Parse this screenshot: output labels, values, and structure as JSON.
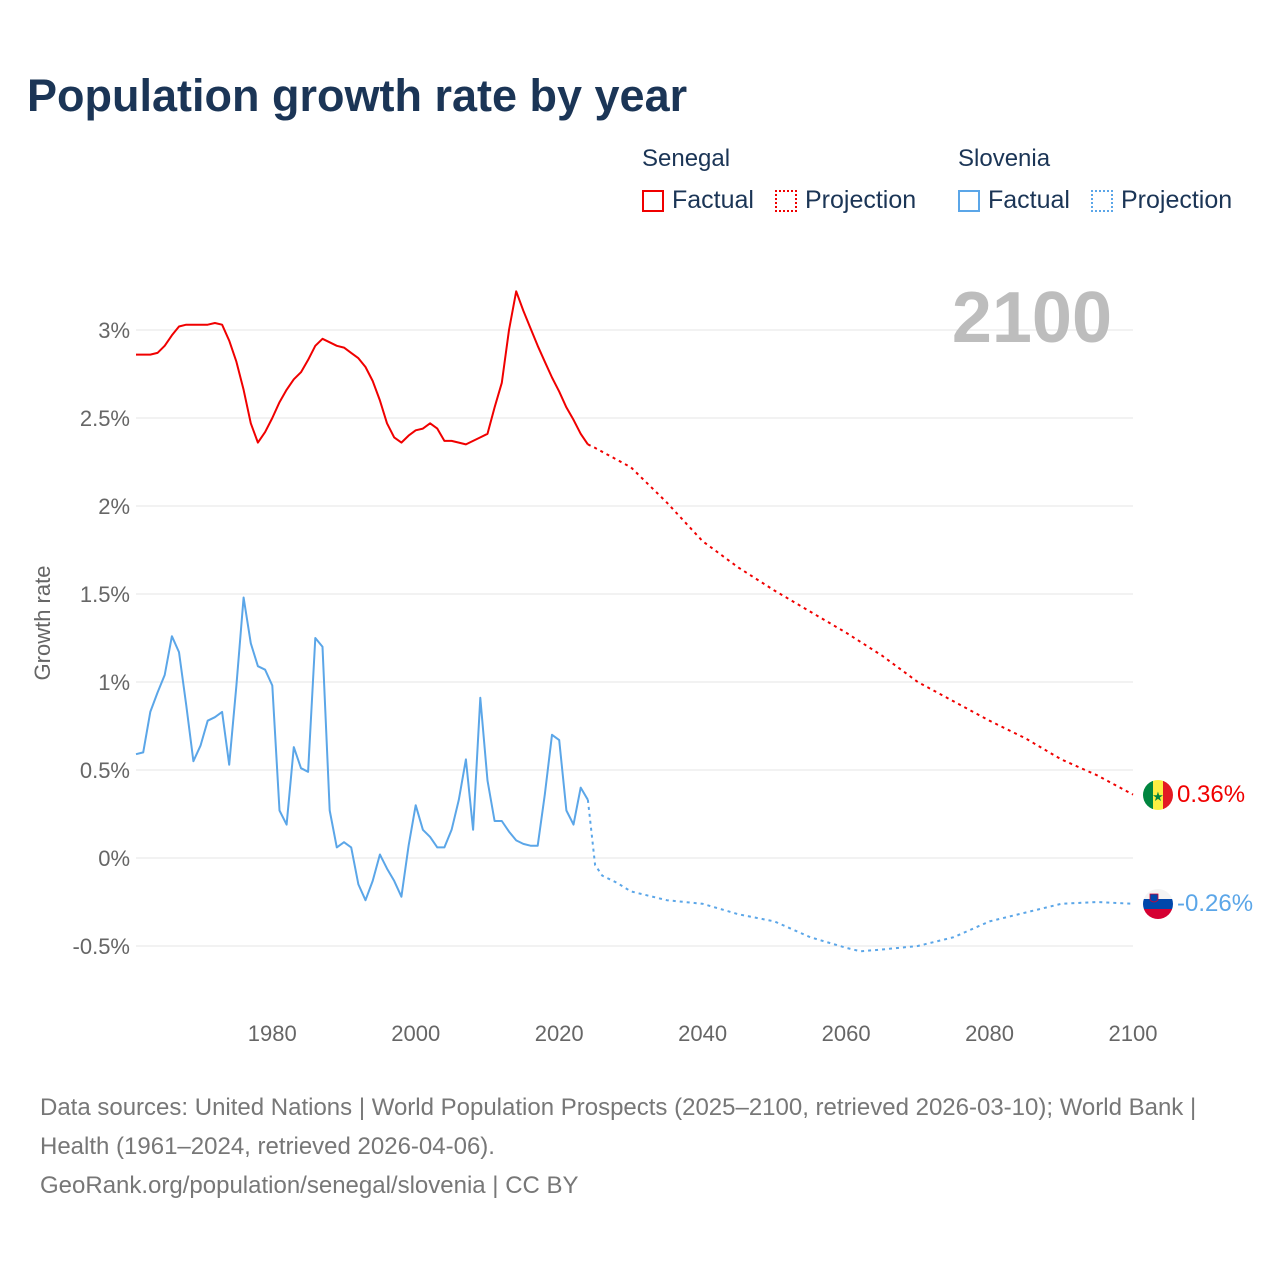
{
  "title": "Population growth rate by year",
  "legend": {
    "groups": [
      {
        "name": "Senegal",
        "items": [
          "Factual",
          "Projection"
        ],
        "color": "#f00000"
      },
      {
        "name": "Slovenia",
        "items": [
          "Factual",
          "Projection"
        ],
        "color": "#5ba6e8"
      }
    ]
  },
  "year_watermark": "2100",
  "chart_data": {
    "type": "line",
    "title": "Population growth rate by year",
    "xlabel": "",
    "ylabel": "Growth rate",
    "xlim": [
      1961,
      2100
    ],
    "ylim": [
      -0.7,
      3.4
    ],
    "xticks": [
      1980,
      2000,
      2020,
      2040,
      2060,
      2080,
      2100
    ],
    "xtick_labels": [
      "1980",
      "2000",
      "2020",
      "2040",
      "2060",
      "2080",
      "2100"
    ],
    "yticks": [
      -0.5,
      0,
      0.5,
      1,
      1.5,
      2,
      2.5,
      3
    ],
    "ytick_labels": [
      "-0.5%",
      "0%",
      "0.5%",
      "1%",
      "1.5%",
      "2%",
      "2.5%",
      "3%"
    ],
    "grid": true,
    "legend_position": "top-right",
    "series": [
      {
        "name": "Senegal Factual",
        "color": "#f00000",
        "style": "solid",
        "x": [
          1961,
          1962,
          1963,
          1964,
          1965,
          1966,
          1967,
          1968,
          1969,
          1970,
          1971,
          1972,
          1973,
          1974,
          1975,
          1976,
          1977,
          1978,
          1979,
          1980,
          1981,
          1982,
          1983,
          1984,
          1985,
          1986,
          1987,
          1988,
          1989,
          1990,
          1991,
          1992,
          1993,
          1994,
          1995,
          1996,
          1997,
          1998,
          1999,
          2000,
          2001,
          2002,
          2003,
          2004,
          2005,
          2006,
          2007,
          2008,
          2009,
          2010,
          2011,
          2012,
          2013,
          2014,
          2015,
          2016,
          2017,
          2018,
          2019,
          2020,
          2021,
          2022,
          2023,
          2024
        ],
        "y": [
          2.86,
          2.86,
          2.86,
          2.87,
          2.91,
          2.97,
          3.02,
          3.03,
          3.03,
          3.03,
          3.03,
          3.04,
          3.03,
          2.94,
          2.82,
          2.66,
          2.47,
          2.36,
          2.42,
          2.5,
          2.59,
          2.66,
          2.72,
          2.76,
          2.83,
          2.91,
          2.95,
          2.93,
          2.91,
          2.9,
          2.87,
          2.84,
          2.79,
          2.71,
          2.6,
          2.47,
          2.39,
          2.36,
          2.4,
          2.43,
          2.44,
          2.47,
          2.44,
          2.37,
          2.37,
          2.36,
          2.35,
          2.37,
          2.39,
          2.41,
          2.56,
          2.7,
          3.0,
          3.22,
          3.11,
          3.01,
          2.91,
          2.82,
          2.73,
          2.65,
          2.56,
          2.49,
          2.41,
          2.35
        ]
      },
      {
        "name": "Senegal Projection",
        "color": "#f00000",
        "style": "dotted",
        "x": [
          2024,
          2025,
          2030,
          2035,
          2040,
          2045,
          2050,
          2055,
          2060,
          2065,
          2070,
          2075,
          2080,
          2085,
          2090,
          2095,
          2100
        ],
        "y": [
          2.35,
          2.33,
          2.22,
          2.02,
          1.8,
          1.65,
          1.52,
          1.4,
          1.28,
          1.15,
          1.0,
          0.89,
          0.78,
          0.68,
          0.56,
          0.47,
          0.36
        ]
      },
      {
        "name": "Slovenia Factual",
        "color": "#5ba6e8",
        "style": "solid",
        "x": [
          1961,
          1962,
          1963,
          1964,
          1965,
          1966,
          1967,
          1968,
          1969,
          1970,
          1971,
          1972,
          1973,
          1974,
          1975,
          1976,
          1977,
          1978,
          1979,
          1980,
          1981,
          1982,
          1983,
          1984,
          1985,
          1986,
          1987,
          1988,
          1989,
          1990,
          1991,
          1992,
          1993,
          1994,
          1995,
          1996,
          1997,
          1998,
          1999,
          2000,
          2001,
          2002,
          2003,
          2004,
          2005,
          2006,
          2007,
          2008,
          2009,
          2010,
          2011,
          2012,
          2013,
          2014,
          2015,
          2016,
          2017,
          2018,
          2019,
          2020,
          2021,
          2022,
          2023,
          2024
        ],
        "y": [
          0.59,
          0.6,
          0.83,
          0.94,
          1.04,
          1.26,
          1.17,
          0.87,
          0.55,
          0.64,
          0.78,
          0.8,
          0.83,
          0.53,
          0.98,
          1.48,
          1.22,
          1.09,
          1.07,
          0.98,
          0.27,
          0.19,
          0.63,
          0.51,
          0.49,
          1.25,
          1.2,
          0.27,
          0.06,
          0.09,
          0.06,
          -0.15,
          -0.24,
          -0.13,
          0.02,
          -0.06,
          -0.13,
          -0.22,
          0.07,
          0.3,
          0.16,
          0.12,
          0.06,
          0.06,
          0.16,
          0.33,
          0.56,
          0.16,
          0.91,
          0.44,
          0.21,
          0.21,
          0.15,
          0.1,
          0.08,
          0.07,
          0.07,
          0.36,
          0.7,
          0.67,
          0.27,
          0.19,
          0.4,
          0.33
        ]
      },
      {
        "name": "Slovenia Projection",
        "color": "#5ba6e8",
        "style": "dotted",
        "x": [
          2024,
          2025,
          2026,
          2028,
          2030,
          2035,
          2040,
          2045,
          2050,
          2055,
          2060,
          2062,
          2065,
          2070,
          2075,
          2080,
          2085,
          2090,
          2095,
          2100
        ],
        "y": [
          0.33,
          -0.04,
          -0.1,
          -0.14,
          -0.19,
          -0.24,
          -0.26,
          -0.32,
          -0.36,
          -0.45,
          -0.51,
          -0.53,
          -0.52,
          -0.5,
          -0.45,
          -0.36,
          -0.31,
          -0.26,
          -0.25,
          -0.26
        ]
      }
    ],
    "end_labels": [
      {
        "country": "Senegal",
        "value": 0.36,
        "label": "0.36%",
        "color": "#f00000"
      },
      {
        "country": "Slovenia",
        "value": -0.26,
        "label": "-0.26%",
        "color": "#5ba6e8"
      }
    ]
  },
  "footer": {
    "sources": "Data sources: United Nations | World Population Prospects (2025–2100, retrieved 2026-03-10); World Bank | Health (1961–2024, retrieved 2026-04-06).",
    "link": "GeoRank.org/population/senegal/slovenia | CC BY"
  }
}
